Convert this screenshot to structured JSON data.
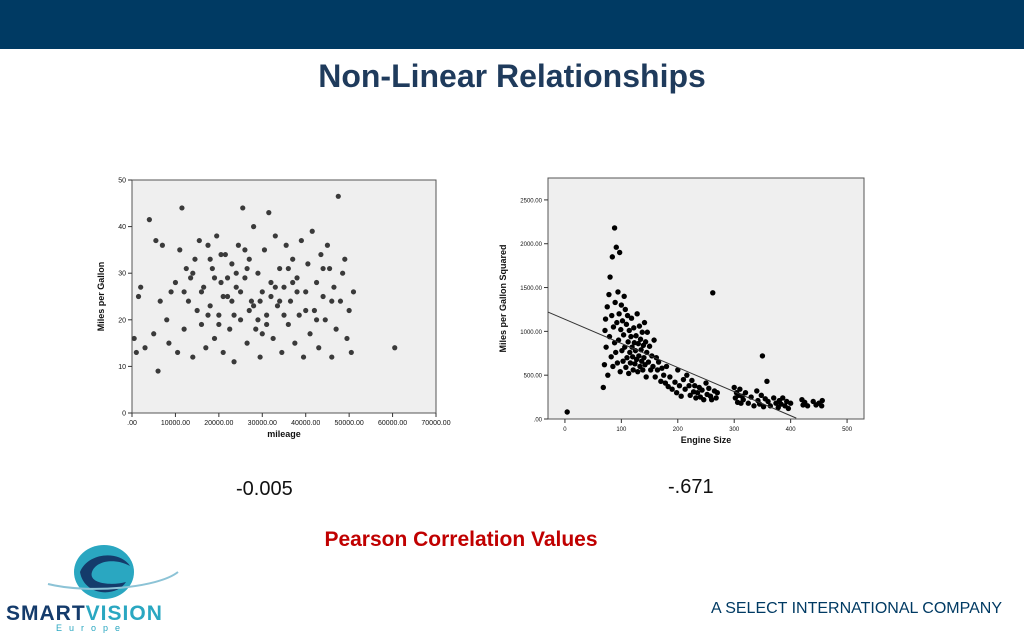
{
  "slide": {
    "title": "Non-Linear Relationships",
    "caption": "Pearson Correlation Values",
    "footer": "A SELECT INTERNATIONAL COMPANY",
    "logo": {
      "word1": "SMART",
      "word2": "VISION",
      "sub": "Europe"
    }
  },
  "correlations": {
    "left": "-0.005",
    "right": "-.671"
  },
  "colors": {
    "header_band": "#003a63",
    "title": "#1f3b5c",
    "caption": "#c00000",
    "plot_bg": "#efefef",
    "logo_dark": "#143b6b",
    "logo_light": "#2aa7c1"
  },
  "chart_data": [
    {
      "type": "scatter",
      "title": "",
      "xlabel": "mileage",
      "ylabel": "Miles per Gallon",
      "xlim": [
        0,
        70000
      ],
      "ylim": [
        0,
        50
      ],
      "xticks": [
        0,
        10000,
        20000,
        30000,
        40000,
        50000,
        60000,
        70000
      ],
      "xtick_labels": [
        ".00",
        "10000.00",
        "20000.00",
        "30000.00",
        "40000.00",
        "50000.00",
        "60000.00",
        "70000.00"
      ],
      "yticks": [
        0,
        10,
        20,
        30,
        40,
        50
      ],
      "ytick_labels": [
        "0",
        "10",
        "20",
        "30",
        "40",
        "50"
      ],
      "fit_line": null,
      "points": [
        [
          500,
          16
        ],
        [
          1000,
          13
        ],
        [
          1500,
          25
        ],
        [
          2000,
          27
        ],
        [
          3000,
          14
        ],
        [
          4000,
          41.5
        ],
        [
          5000,
          17
        ],
        [
          5500,
          37
        ],
        [
          6000,
          9
        ],
        [
          6500,
          24
        ],
        [
          7000,
          36
        ],
        [
          8000,
          20
        ],
        [
          8500,
          15
        ],
        [
          9000,
          26
        ],
        [
          10000,
          28
        ],
        [
          10500,
          13
        ],
        [
          11000,
          35
        ],
        [
          11500,
          44
        ],
        [
          12000,
          18
        ],
        [
          12500,
          31
        ],
        [
          13000,
          24
        ],
        [
          13500,
          29
        ],
        [
          14000,
          12
        ],
        [
          14500,
          33
        ],
        [
          15000,
          22
        ],
        [
          15500,
          37
        ],
        [
          16000,
          19
        ],
        [
          16500,
          27
        ],
        [
          17000,
          14
        ],
        [
          17500,
          36
        ],
        [
          18000,
          23
        ],
        [
          18500,
          31
        ],
        [
          19000,
          16
        ],
        [
          19500,
          38
        ],
        [
          20000,
          21
        ],
        [
          20500,
          28
        ],
        [
          21000,
          13
        ],
        [
          21500,
          34
        ],
        [
          22000,
          25
        ],
        [
          22500,
          18
        ],
        [
          23000,
          32
        ],
        [
          23500,
          11
        ],
        [
          24000,
          27
        ],
        [
          24500,
          36
        ],
        [
          25000,
          20
        ],
        [
          25500,
          44
        ],
        [
          26000,
          29
        ],
        [
          26500,
          15
        ],
        [
          27000,
          33
        ],
        [
          27500,
          24
        ],
        [
          28000,
          40
        ],
        [
          28500,
          18
        ],
        [
          29000,
          30
        ],
        [
          29500,
          12
        ],
        [
          30000,
          26
        ],
        [
          30500,
          35
        ],
        [
          31000,
          21
        ],
        [
          31500,
          43
        ],
        [
          32000,
          28
        ],
        [
          32500,
          16
        ],
        [
          33000,
          38
        ],
        [
          33500,
          23
        ],
        [
          34000,
          31
        ],
        [
          34500,
          13
        ],
        [
          35000,
          27
        ],
        [
          35500,
          36
        ],
        [
          36000,
          19
        ],
        [
          36500,
          24
        ],
        [
          37000,
          33
        ],
        [
          37500,
          15
        ],
        [
          38000,
          29
        ],
        [
          38500,
          21
        ],
        [
          39000,
          37
        ],
        [
          39500,
          12
        ],
        [
          40000,
          26
        ],
        [
          40500,
          32
        ],
        [
          41000,
          17
        ],
        [
          41500,
          39
        ],
        [
          42000,
          22
        ],
        [
          42500,
          28
        ],
        [
          43000,
          14
        ],
        [
          43500,
          34
        ],
        [
          44000,
          25
        ],
        [
          44500,
          20
        ],
        [
          45000,
          36
        ],
        [
          45500,
          31
        ],
        [
          46000,
          12
        ],
        [
          46500,
          27
        ],
        [
          47000,
          18
        ],
        [
          47500,
          46.5
        ],
        [
          48000,
          24
        ],
        [
          48500,
          30
        ],
        [
          49000,
          33
        ],
        [
          49500,
          16
        ],
        [
          50000,
          22
        ],
        [
          50500,
          13
        ],
        [
          51000,
          26
        ],
        [
          60500,
          14
        ],
        [
          18000,
          33
        ],
        [
          21000,
          25
        ],
        [
          24000,
          30
        ],
        [
          27000,
          22
        ],
        [
          30000,
          17
        ],
        [
          33000,
          27
        ],
        [
          36000,
          31
        ],
        [
          20000,
          19
        ],
        [
          23000,
          24
        ],
        [
          26000,
          35
        ],
        [
          29000,
          20
        ],
        [
          32000,
          25
        ],
        [
          35000,
          21
        ],
        [
          38000,
          26
        ],
        [
          22000,
          29
        ],
        [
          25000,
          26
        ],
        [
          28000,
          23
        ],
        [
          31000,
          19
        ],
        [
          34000,
          24
        ],
        [
          37000,
          28
        ],
        [
          16000,
          26
        ],
        [
          19000,
          29
        ],
        [
          17500,
          21
        ],
        [
          29500,
          24
        ],
        [
          26500,
          31
        ],
        [
          23500,
          21
        ],
        [
          20500,
          34
        ],
        [
          14000,
          30
        ],
        [
          12000,
          26
        ],
        [
          40000,
          22
        ],
        [
          42500,
          20
        ],
        [
          44000,
          31
        ],
        [
          46000,
          24
        ]
      ]
    },
    {
      "type": "scatter",
      "title": "",
      "xlabel": "Engine Size",
      "ylabel": "Miles per Gallon Squared",
      "xlim": [
        -30,
        530
      ],
      "ylim": [
        0,
        2750
      ],
      "xticks": [
        0,
        100,
        200,
        300,
        400,
        500
      ],
      "xtick_labels": [
        "0",
        "100",
        "200",
        "300",
        "400",
        "500"
      ],
      "yticks": [
        0,
        500,
        1000,
        1500,
        2000,
        2500
      ],
      "ytick_labels": [
        ".00",
        "500.00",
        "1000.00",
        "1500.00",
        "2000.00",
        "2500.00"
      ],
      "fit_line": {
        "x": [
          -30,
          410
        ],
        "y": [
          1220,
          10
        ]
      },
      "points": [
        [
          4,
          80
        ],
        [
          68,
          360
        ],
        [
          70,
          620
        ],
        [
          71,
          1010
        ],
        [
          72,
          1140
        ],
        [
          73,
          820
        ],
        [
          75,
          1280
        ],
        [
          76,
          500
        ],
        [
          78,
          1420
        ],
        [
          79,
          940
        ],
        [
          80,
          1620
        ],
        [
          82,
          710
        ],
        [
          83,
          1180
        ],
        [
          84,
          1850
        ],
        [
          85,
          600
        ],
        [
          86,
          1050
        ],
        [
          88,
          2180
        ],
        [
          88,
          870
        ],
        [
          89,
          1330
        ],
        [
          90,
          760
        ],
        [
          91,
          1960
        ],
        [
          92,
          1100
        ],
        [
          93,
          640
        ],
        [
          94,
          1450
        ],
        [
          95,
          900
        ],
        [
          96,
          1200
        ],
        [
          97,
          1900
        ],
        [
          98,
          540
        ],
        [
          99,
          1020
        ],
        [
          100,
          1300
        ],
        [
          101,
          780
        ],
        [
          102,
          1120
        ],
        [
          103,
          660
        ],
        [
          104,
          960
        ],
        [
          105,
          1400
        ],
        [
          106,
          820
        ],
        [
          107,
          1250
        ],
        [
          108,
          590
        ],
        [
          109,
          1080
        ],
        [
          110,
          700
        ],
        [
          111,
          1180
        ],
        [
          112,
          880
        ],
        [
          113,
          520
        ],
        [
          114,
          1010
        ],
        [
          115,
          760
        ],
        [
          116,
          640
        ],
        [
          117,
          940
        ],
        [
          118,
          1150
        ],
        [
          119,
          820
        ],
        [
          120,
          710
        ],
        [
          121,
          560
        ],
        [
          122,
          1040
        ],
        [
          123,
          870
        ],
        [
          124,
          630
        ],
        [
          125,
          780
        ],
        [
          126,
          950
        ],
        [
          127,
          680
        ],
        [
          128,
          1200
        ],
        [
          129,
          540
        ],
        [
          130,
          860
        ],
        [
          131,
          720
        ],
        [
          132,
          1060
        ],
        [
          133,
          600
        ],
        [
          134,
          910
        ],
        [
          135,
          790
        ],
        [
          136,
          660
        ],
        [
          137,
          990
        ],
        [
          138,
          560
        ],
        [
          139,
          840
        ],
        [
          140,
          700
        ],
        [
          141,
          1100
        ],
        [
          142,
          620
        ],
        [
          143,
          880
        ],
        [
          144,
          480
        ],
        [
          145,
          760
        ],
        [
          146,
          990
        ],
        [
          148,
          650
        ],
        [
          150,
          830
        ],
        [
          152,
          560
        ],
        [
          154,
          720
        ],
        [
          156,
          600
        ],
        [
          158,
          900
        ],
        [
          160,
          480
        ],
        [
          162,
          700
        ],
        [
          164,
          560
        ],
        [
          166,
          650
        ],
        [
          170,
          430
        ],
        [
          172,
          580
        ],
        [
          175,
          500
        ],
        [
          178,
          410
        ],
        [
          180,
          600
        ],
        [
          183,
          370
        ],
        [
          186,
          480
        ],
        [
          190,
          340
        ],
        [
          195,
          420
        ],
        [
          198,
          300
        ],
        [
          200,
          560
        ],
        [
          203,
          380
        ],
        [
          206,
          260
        ],
        [
          210,
          450
        ],
        [
          213,
          340
        ],
        [
          216,
          500
        ],
        [
          220,
          380
        ],
        [
          222,
          270
        ],
        [
          225,
          440
        ],
        [
          228,
          310
        ],
        [
          230,
          380
        ],
        [
          232,
          240
        ],
        [
          235,
          300
        ],
        [
          238,
          360
        ],
        [
          240,
          250
        ],
        [
          243,
          330
        ],
        [
          246,
          220
        ],
        [
          250,
          410
        ],
        [
          252,
          280
        ],
        [
          255,
          350
        ],
        [
          258,
          260
        ],
        [
          260,
          220
        ],
        [
          262,
          1440
        ],
        [
          265,
          320
        ],
        [
          268,
          240
        ],
        [
          270,
          300
        ],
        [
          300,
          360
        ],
        [
          302,
          240
        ],
        [
          304,
          300
        ],
        [
          306,
          190
        ],
        [
          308,
          270
        ],
        [
          310,
          340
        ],
        [
          312,
          180
        ],
        [
          314,
          260
        ],
        [
          316,
          220
        ],
        [
          320,
          300
        ],
        [
          325,
          180
        ],
        [
          330,
          250
        ],
        [
          335,
          150
        ],
        [
          340,
          320
        ],
        [
          342,
          210
        ],
        [
          345,
          170
        ],
        [
          348,
          270
        ],
        [
          350,
          720
        ],
        [
          352,
          140
        ],
        [
          355,
          230
        ],
        [
          358,
          430
        ],
        [
          360,
          200
        ],
        [
          364,
          150
        ],
        [
          370,
          240
        ],
        [
          374,
          180
        ],
        [
          378,
          130
        ],
        [
          380,
          210
        ],
        [
          383,
          170
        ],
        [
          386,
          240
        ],
        [
          390,
          150
        ],
        [
          393,
          200
        ],
        [
          396,
          120
        ],
        [
          400,
          180
        ],
        [
          420,
          220
        ],
        [
          422,
          160
        ],
        [
          425,
          190
        ],
        [
          430,
          150
        ],
        [
          440,
          200
        ],
        [
          445,
          160
        ],
        [
          450,
          180
        ],
        [
          455,
          150
        ],
        [
          456,
          210
        ]
      ]
    }
  ]
}
